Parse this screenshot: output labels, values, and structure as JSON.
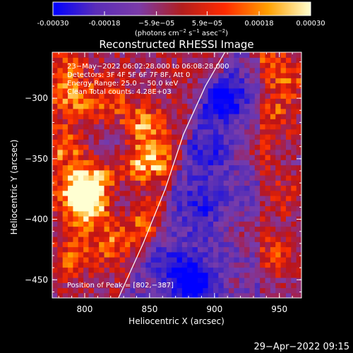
{
  "chart_data": {
    "type": "heatmap",
    "title": "Reconstructed RHESSI Image",
    "xlabel": "Heliocentric X (arcsec)",
    "ylabel": "Heliocentric Y (arcsec)",
    "xlim": [
      775,
      967
    ],
    "ylim": [
      -465,
      -262
    ],
    "x_ticks": [
      800,
      850,
      900,
      950
    ],
    "y_ticks": [
      -300,
      -350,
      -400,
      -450
    ],
    "colorbar": {
      "min": -0.0003,
      "max": 0.0003,
      "ticks": [
        "-0.00030",
        "-0.00018",
        "−5.9e−05",
        "5.9e−05",
        "0.00018",
        "0.00030"
      ],
      "tick_values": [
        -0.0003,
        -0.00018,
        -5.9e-05,
        5.9e-05,
        0.00018,
        0.0003
      ],
      "unit_prefix": "(photons cm",
      "unit_exp1": "−2",
      "unit_mid": " s",
      "unit_exp2": "−1",
      "unit_mid2": " asec",
      "unit_exp3": "−2",
      "unit_suffix": ")",
      "colors": [
        "#0000ff",
        "#5a2db8",
        "#7b3ba8",
        "#b21e1e",
        "#ff2a00",
        "#ffa000",
        "#ffffd0"
      ]
    },
    "annotations": [
      "23−May−2022 06:02:28.000 to 06:08:28.000",
      "Detectors: 3F 4F 5F 6F 7F 8F, Att 0",
      "Energy Range: 25.0 − 50.0 keV",
      "Clean      Total counts: 4.28E+03"
    ],
    "peak_label": "Position of Peak = [802,−387]",
    "peak": [
      802,
      -387
    ],
    "limb_curve": [
      [
        826,
        -465
      ],
      [
        845,
        -420
      ],
      [
        862,
        -375
      ],
      [
        876,
        -330
      ],
      [
        893,
        -290
      ],
      [
        908,
        -262
      ]
    ],
    "blobs": [
      {
        "x": 802,
        "y": -388,
        "amp": 1.0
      },
      {
        "x": 795,
        "y": -375,
        "amp": 0.6
      },
      {
        "x": 808,
        "y": -365,
        "amp": 0.55
      },
      {
        "x": 784,
        "y": -340,
        "amp": 0.55
      },
      {
        "x": 790,
        "y": -300,
        "amp": 0.5
      },
      {
        "x": 783,
        "y": -275,
        "amp": 0.45
      },
      {
        "x": 818,
        "y": -300,
        "amp": 0.4
      },
      {
        "x": 845,
        "y": -322,
        "amp": 0.62
      },
      {
        "x": 858,
        "y": -350,
        "amp": 0.45
      },
      {
        "x": 842,
        "y": -355,
        "amp": 0.5
      },
      {
        "x": 820,
        "y": -420,
        "amp": 0.45
      },
      {
        "x": 790,
        "y": -430,
        "amp": 0.45
      },
      {
        "x": 840,
        "y": -405,
        "amp": 0.3
      },
      {
        "x": 853,
        "y": -395,
        "amp": 0.3
      },
      {
        "x": 957,
        "y": -285,
        "amp": 0.55
      },
      {
        "x": 948,
        "y": -315,
        "amp": 0.5
      },
      {
        "x": 940,
        "y": -265,
        "amp": 0.45
      },
      {
        "x": 932,
        "y": -345,
        "amp": 0.45
      },
      {
        "x": 955,
        "y": -380,
        "amp": 0.4
      },
      {
        "x": 950,
        "y": -430,
        "amp": 0.45
      },
      {
        "x": 925,
        "y": -410,
        "amp": 0.35
      },
      {
        "x": 915,
        "y": -455,
        "amp": 0.25
      },
      {
        "x": 860,
        "y": -455,
        "amp": 0.2
      }
    ],
    "dips": [
      {
        "x": 905,
        "y": -300,
        "amp": -0.85
      },
      {
        "x": 885,
        "y": -455,
        "amp": -0.85
      },
      {
        "x": 870,
        "y": -440,
        "amp": -0.45
      },
      {
        "x": 888,
        "y": -390,
        "amp": -0.4
      },
      {
        "x": 893,
        "y": -345,
        "amp": -0.4
      },
      {
        "x": 820,
        "y": -340,
        "amp": -0.35
      },
      {
        "x": 828,
        "y": -385,
        "amp": -0.3
      }
    ]
  },
  "footer": {
    "timestamp": "29−Apr−2022 09:15"
  }
}
